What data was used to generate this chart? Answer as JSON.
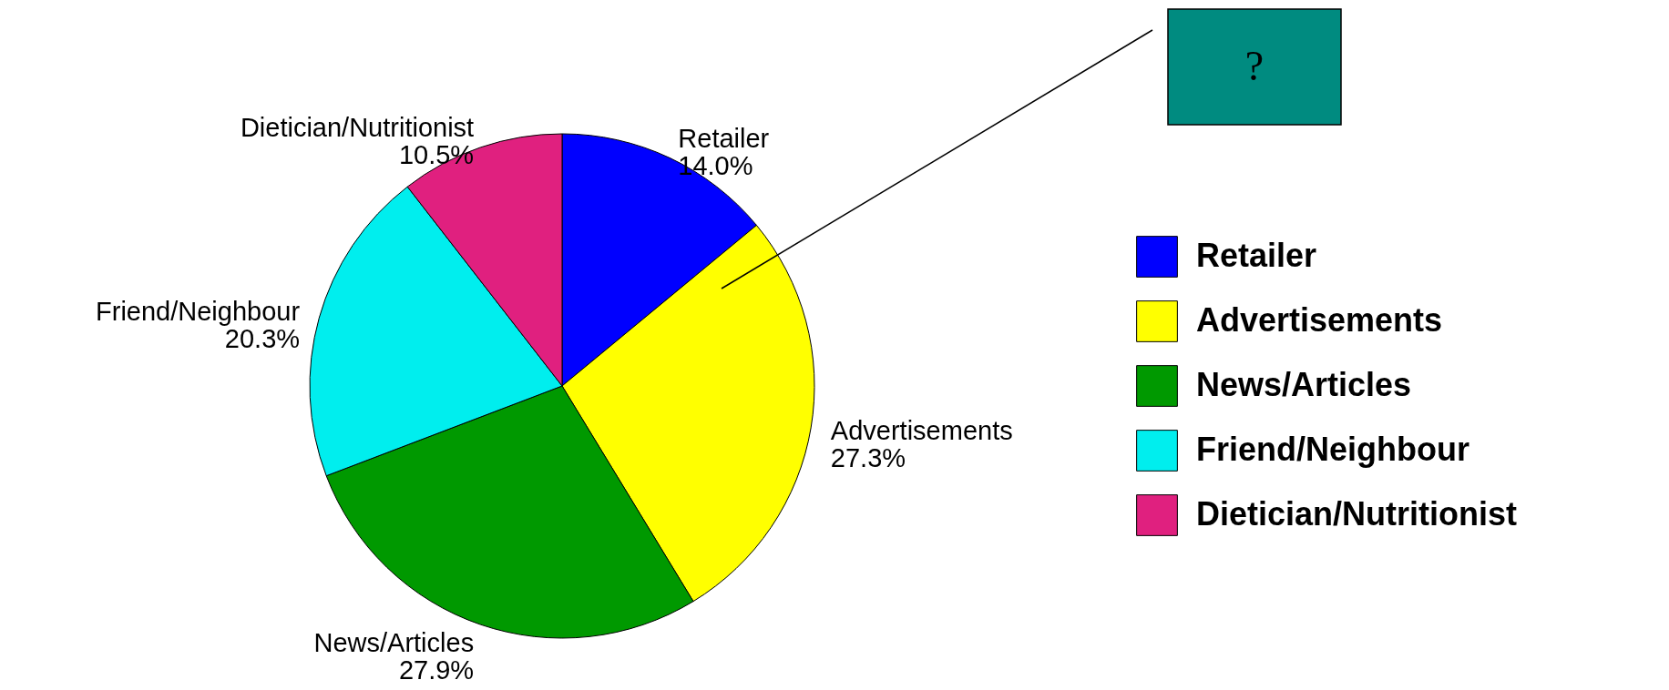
{
  "chart_data": {
    "type": "pie",
    "categories": [
      "Retailer",
      "Advertisements",
      "News/Articles",
      "Friend/Neighbour",
      "Dietician/Nutritionist"
    ],
    "values": [
      14.0,
      27.3,
      27.9,
      20.3,
      10.5
    ],
    "value_labels": [
      "14.0%",
      "27.3%",
      "27.9%",
      "20.3%",
      "10.5%"
    ],
    "colors": [
      "#0000ff",
      "#ffff00",
      "#009900",
      "#00eeee",
      "#e0207f"
    ],
    "legend": "right",
    "annotations": [
      "?"
    ]
  }
}
